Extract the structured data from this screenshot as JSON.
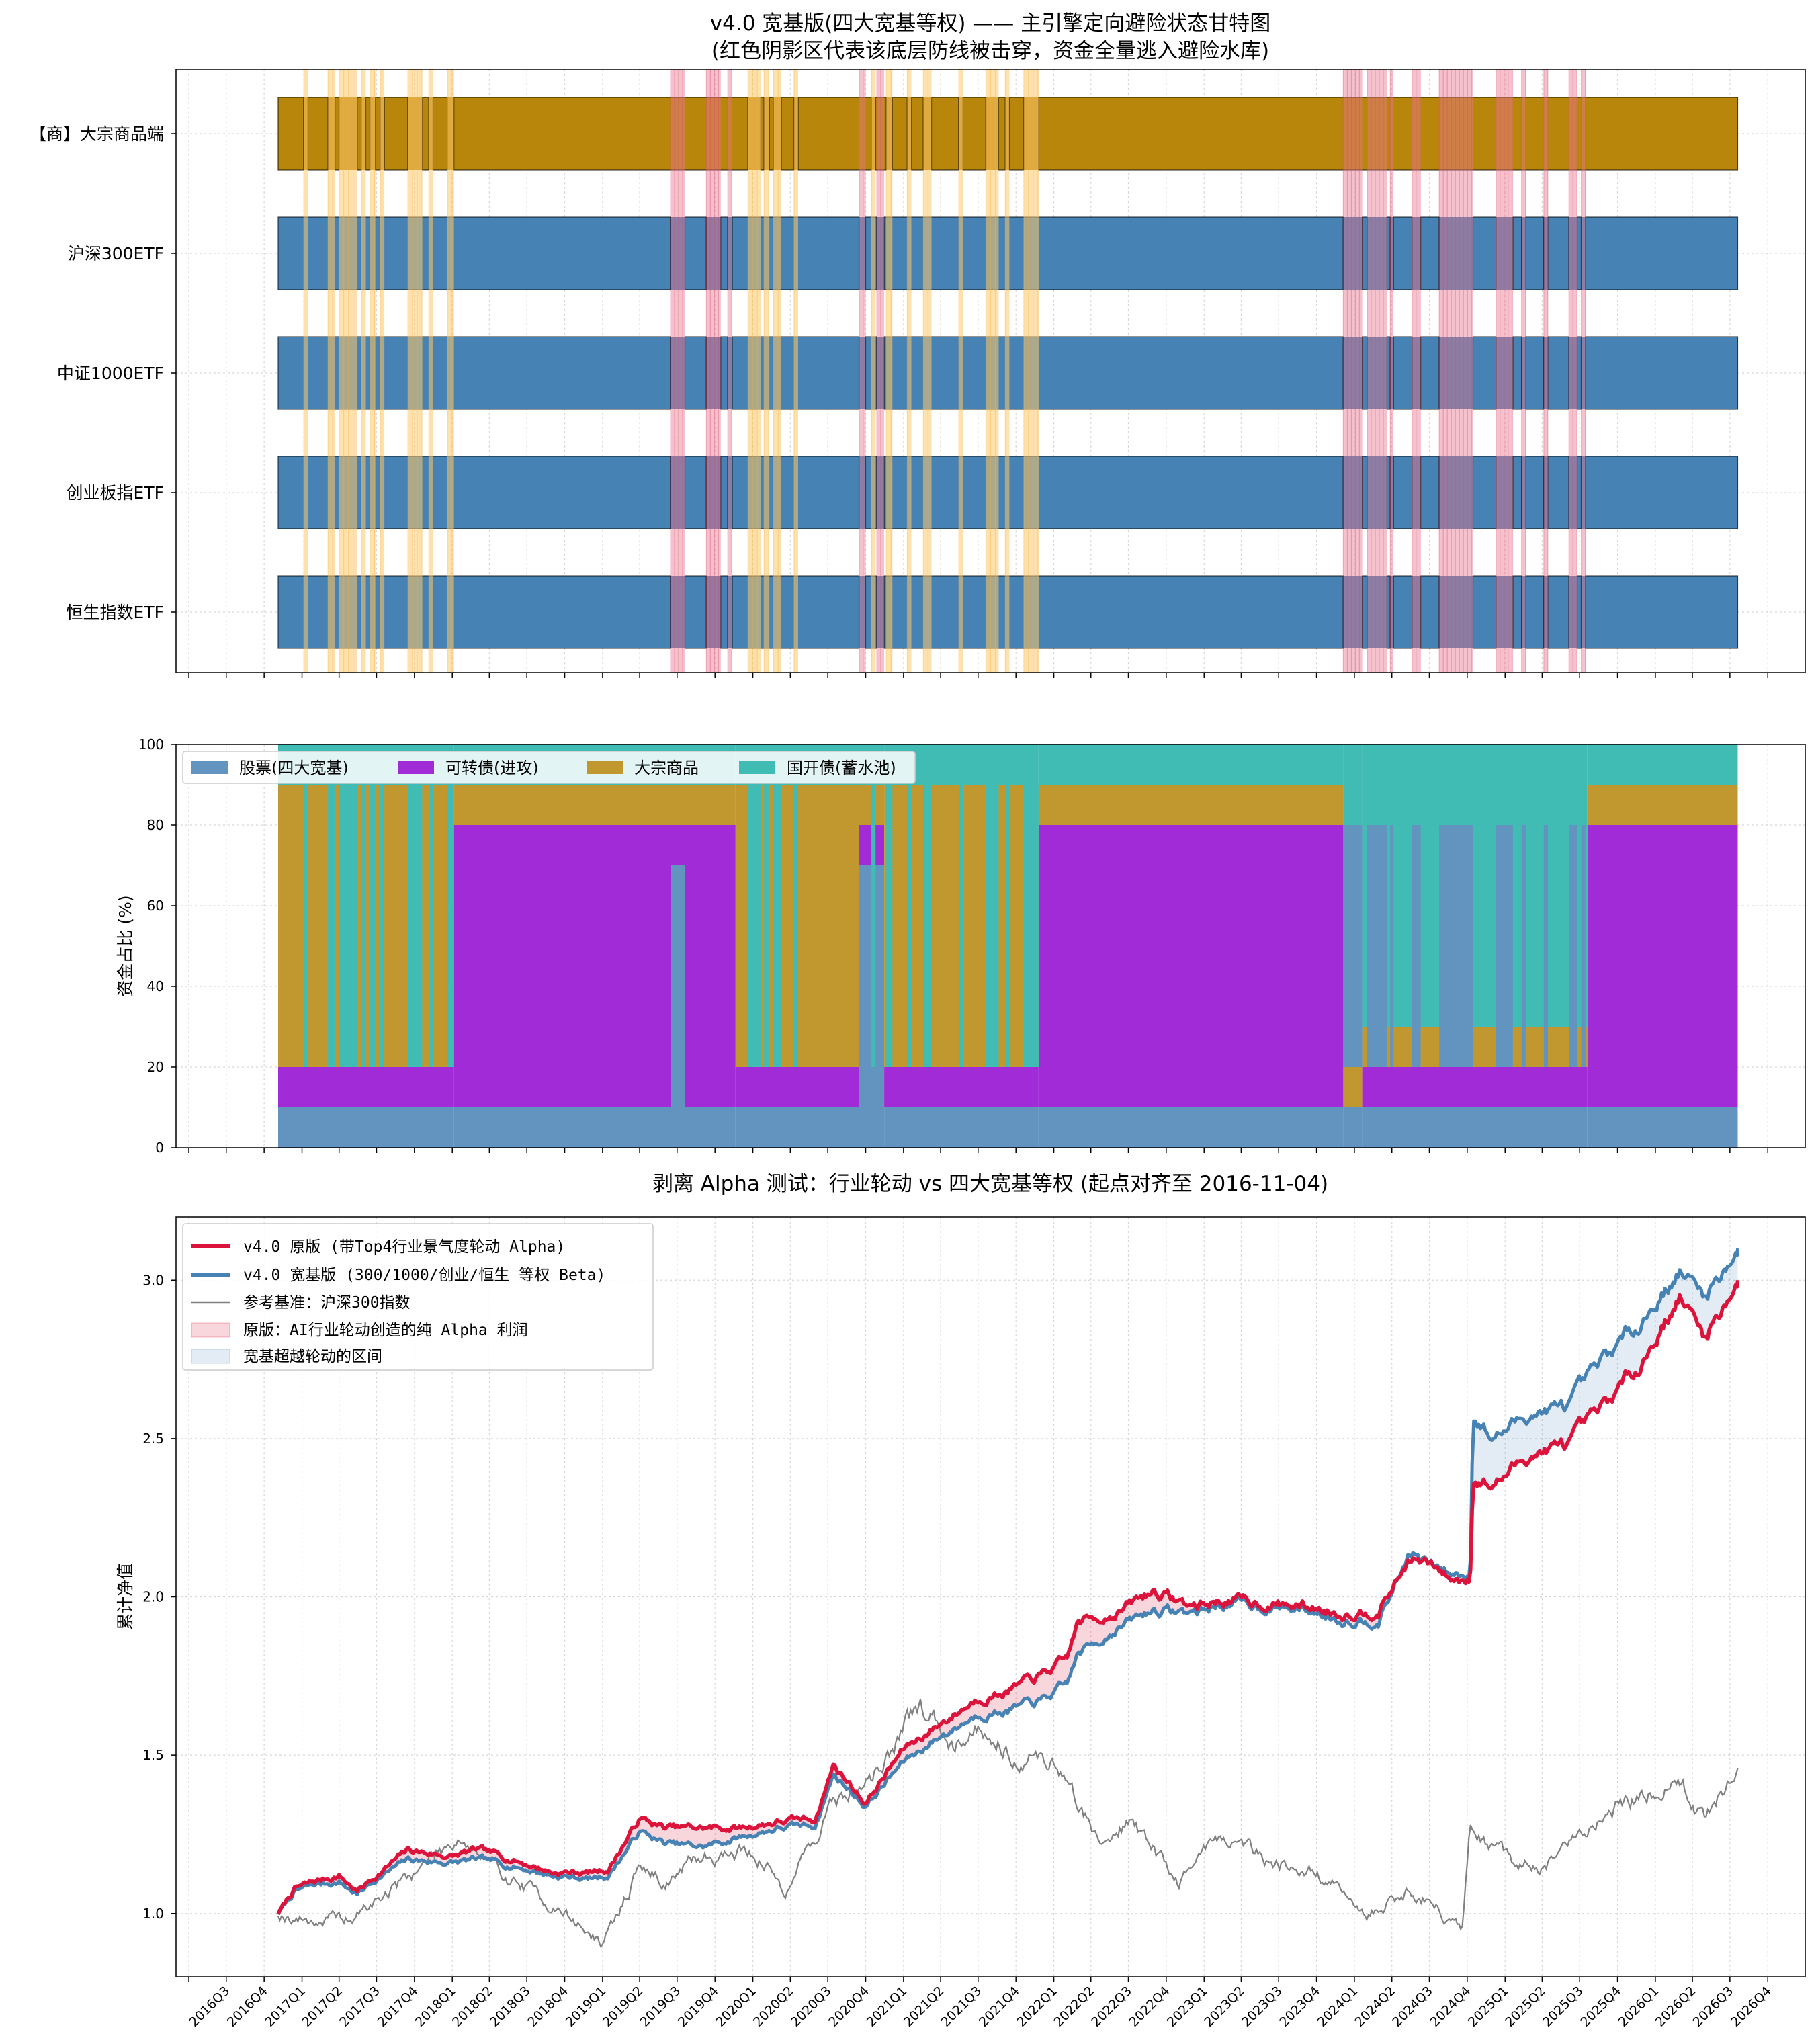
{
  "colors": {
    "stock": "#4682b4",
    "stock_area": "#6393bf",
    "cb": "#a22bd8",
    "commodity": "#b8860b",
    "commodity_area": "#c0982f",
    "bond": "#40bcb4",
    "red_line": "#dc143c",
    "blue_line": "#4682b4",
    "bench": "#808080",
    "shade_red": "#e8758f",
    "shade_orange": "#ffc96b"
  },
  "chart_data": [
    {
      "type": "gantt",
      "title": "v4.0 宽基版(四大宽基等权) —— 主引擎定向避险状态甘特图",
      "subtitle": "(红色阴影区代表该底层防线被击穿，资金全量逃入避险水库)",
      "rows": [
        "【商】大宗商品端",
        "沪深300ETF",
        "中证1000ETF",
        "创业板指ETF",
        "恒生指数ETF"
      ],
      "x_range": [
        "2016-03-01",
        "2026-12-31"
      ],
      "bar_span": [
        "2016-11-04",
        "2026-07-20"
      ],
      "orange_shades": [
        [
          "2017-01-05",
          "2017-01-15"
        ],
        [
          "2017-03-05",
          "2017-03-22"
        ],
        [
          "2017-04-01",
          "2017-05-15"
        ],
        [
          "2017-05-25",
          "2017-06-05"
        ],
        [
          "2017-06-15",
          "2017-06-28"
        ],
        [
          "2017-07-10",
          "2017-07-20"
        ],
        [
          "2017-09-15",
          "2017-10-20"
        ],
        [
          "2017-11-05",
          "2017-11-15"
        ],
        [
          "2017-12-20",
          "2018-01-05"
        ],
        [
          "2019-12-20",
          "2020-01-20"
        ],
        [
          "2020-01-28",
          "2020-02-10"
        ],
        [
          "2020-02-20",
          "2020-03-10"
        ],
        [
          "2020-04-10",
          "2020-04-20"
        ],
        [
          "2020-10-15",
          "2020-10-25"
        ],
        [
          "2020-11-20",
          "2020-12-05"
        ],
        [
          "2021-01-10",
          "2021-01-20"
        ],
        [
          "2021-02-18",
          "2021-03-10"
        ],
        [
          "2021-05-15",
          "2021-05-25"
        ],
        [
          "2021-07-20",
          "2021-08-20"
        ],
        [
          "2021-09-05",
          "2021-09-15"
        ],
        [
          "2021-10-20",
          "2021-11-25"
        ]
      ],
      "red_shades": [
        [
          "2019-06-15",
          "2019-07-20"
        ],
        [
          "2019-09-10",
          "2019-10-15"
        ],
        [
          "2019-11-01",
          "2019-11-12"
        ],
        [
          "2020-09-15",
          "2020-10-01"
        ],
        [
          "2020-10-28",
          "2020-11-15"
        ],
        [
          "2023-12-05",
          "2024-01-20"
        ],
        [
          "2024-02-01",
          "2024-03-20"
        ],
        [
          "2024-03-28",
          "2024-04-05"
        ],
        [
          "2024-05-20",
          "2024-06-10"
        ],
        [
          "2024-07-25",
          "2024-10-15"
        ],
        [
          "2024-12-10",
          "2025-01-20"
        ],
        [
          "2025-02-10",
          "2025-02-20"
        ],
        [
          "2025-04-05",
          "2025-04-15"
        ],
        [
          "2025-06-05",
          "2025-06-25"
        ],
        [
          "2025-07-05",
          "2025-07-15"
        ]
      ]
    },
    {
      "type": "area",
      "ylabel": "资金占比 (%)",
      "ylim": [
        0,
        100
      ],
      "yticks": [
        0,
        20,
        40,
        60,
        80,
        100
      ],
      "series": [
        {
          "name": "股票(四大宽基)",
          "key": "stock"
        },
        {
          "name": "可转债(进攻)",
          "key": "cb"
        },
        {
          "name": "大宗商品",
          "key": "commodity"
        },
        {
          "name": "国开债(蓄水池)",
          "key": "bond"
        }
      ],
      "regimes": [
        {
          "label": "A",
          "stock": 10,
          "cb": 10,
          "commodity": 70,
          "bond": 10
        },
        {
          "label": "B",
          "stock": 10,
          "cb": 10,
          "commodity": 0,
          "bond": 80
        },
        {
          "label": "C",
          "stock": 10,
          "cb": 70,
          "commodity": 10,
          "bond": 10
        },
        {
          "label": "D",
          "stock": 70,
          "cb": 10,
          "commodity": 10,
          "bond": 10
        },
        {
          "label": "E",
          "stock": 10,
          "cb": 0,
          "commodity": 10,
          "bond": 80
        },
        {
          "label": "F",
          "stock": 10,
          "cb": 10,
          "commodity": 10,
          "bond": 70
        }
      ],
      "segments": [
        [
          "2016-11-04",
          "2018-01-05",
          "A"
        ],
        [
          "2018-01-05",
          "2019-06-15",
          "C"
        ],
        [
          "2019-06-15",
          "2019-07-20",
          "D"
        ],
        [
          "2019-07-20",
          "2019-11-20",
          "C"
        ],
        [
          "2019-11-20",
          "2020-09-15",
          "A"
        ],
        [
          "2020-09-15",
          "2020-11-15",
          "D"
        ],
        [
          "2020-11-15",
          "2021-11-25",
          "A"
        ],
        [
          "2021-11-25",
          "2023-12-05",
          "C"
        ],
        [
          "2023-12-05",
          "2024-01-20",
          "E"
        ],
        [
          "2024-01-20",
          "2025-07-20",
          "F"
        ],
        [
          "2025-07-20",
          "2026-07-20",
          "C"
        ]
      ]
    },
    {
      "type": "line",
      "title": "剥离 Alpha 测试：行业轮动 vs 四大宽基等权 (起点对齐至 2016-11-04)",
      "ylabel": "累计净值",
      "ylim": [
        0.8,
        3.2
      ],
      "yticks": [
        1.0,
        1.5,
        2.0,
        2.5,
        3.0
      ],
      "xticks": [
        "2016Q3",
        "2016Q4",
        "2017Q1",
        "2017Q2",
        "2017Q3",
        "2017Q4",
        "2018Q1",
        "2018Q2",
        "2018Q3",
        "2018Q4",
        "2019Q1",
        "2019Q2",
        "2019Q3",
        "2019Q4",
        "2020Q1",
        "2020Q2",
        "2020Q3",
        "2020Q4",
        "2021Q1",
        "2021Q2",
        "2021Q3",
        "2021Q4",
        "2022Q1",
        "2022Q2",
        "2022Q3",
        "2022Q4",
        "2023Q1",
        "2023Q2",
        "2023Q3",
        "2023Q4",
        "2024Q1",
        "2024Q2",
        "2024Q3",
        "2024Q4",
        "2025Q1",
        "2025Q2",
        "2025Q3",
        "2025Q4",
        "2026Q1",
        "2026Q2",
        "2026Q3",
        "2026Q4"
      ],
      "legend": [
        "v4.0 原版 (带Top4行业景气度轮动 Alpha)",
        "v4.0 宽基版 (300/1000/创业/恒生 等权 Beta)",
        "参考基准：沪深300指数",
        "原版：AI行业轮动创造的纯 Alpha 利润",
        "宽基超越轮动的区间"
      ],
      "series": [
        {
          "name": "v4.0 原版 (带Top4行业景气度轮动 Alpha)",
          "points": [
            [
              "2016-11-04",
              1.0
            ],
            [
              "2016-12-15",
              1.08
            ],
            [
              "2017-02-01",
              1.1
            ],
            [
              "2017-04-01",
              1.12
            ],
            [
              "2017-05-15",
              1.07
            ],
            [
              "2017-07-01",
              1.12
            ],
            [
              "2017-09-15",
              1.2
            ],
            [
              "2018-01-01",
              1.18
            ],
            [
              "2018-03-01",
              1.2
            ],
            [
              "2018-06-01",
              1.17
            ],
            [
              "2018-09-01",
              1.13
            ],
            [
              "2018-12-01",
              1.13
            ],
            [
              "2019-01-15",
              1.14
            ],
            [
              "2019-04-01",
              1.3
            ],
            [
              "2019-06-01",
              1.27
            ],
            [
              "2019-09-01",
              1.27
            ],
            [
              "2019-12-01",
              1.27
            ],
            [
              "2020-03-01",
              1.29
            ],
            [
              "2020-06-01",
              1.3
            ],
            [
              "2020-07-15",
              1.47
            ],
            [
              "2020-10-01",
              1.35
            ],
            [
              "2021-01-01",
              1.52
            ],
            [
              "2021-04-01",
              1.6
            ],
            [
              "2021-07-01",
              1.68
            ],
            [
              "2021-09-01",
              1.7
            ],
            [
              "2021-12-01",
              1.75
            ],
            [
              "2022-02-01",
              1.8
            ],
            [
              "2022-03-01",
              1.92
            ],
            [
              "2022-06-01",
              1.95
            ],
            [
              "2022-09-01",
              2.02
            ],
            [
              "2022-12-01",
              1.97
            ],
            [
              "2023-03-01",
              1.99
            ],
            [
              "2023-06-01",
              1.98
            ],
            [
              "2023-09-01",
              1.97
            ],
            [
              "2023-12-01",
              1.95
            ],
            [
              "2024-03-01",
              1.96
            ],
            [
              "2024-05-15",
              2.12
            ],
            [
              "2024-07-01",
              2.1
            ],
            [
              "2024-09-01",
              2.05
            ],
            [
              "2024-10-08",
              2.06
            ],
            [
              "2024-10-15",
              2.38
            ],
            [
              "2024-12-01",
              2.35
            ],
            [
              "2025-03-01",
              2.45
            ],
            [
              "2025-06-01",
              2.48
            ],
            [
              "2025-09-01",
              2.6
            ],
            [
              "2025-12-01",
              2.75
            ],
            [
              "2026-03-01",
              2.95
            ],
            [
              "2026-05-01",
              2.82
            ],
            [
              "2026-07-20",
              3.0
            ]
          ]
        },
        {
          "name": "v4.0 宽基版 (300/1000/创业/恒生 等权 Beta)",
          "points": [
            [
              "2016-11-04",
              1.0
            ],
            [
              "2016-12-15",
              1.07
            ],
            [
              "2017-02-01",
              1.09
            ],
            [
              "2017-04-01",
              1.1
            ],
            [
              "2017-05-15",
              1.06
            ],
            [
              "2017-07-01",
              1.11
            ],
            [
              "2017-09-15",
              1.17
            ],
            [
              "2018-01-01",
              1.16
            ],
            [
              "2018-03-01",
              1.17
            ],
            [
              "2018-06-01",
              1.15
            ],
            [
              "2018-09-01",
              1.12
            ],
            [
              "2018-12-01",
              1.11
            ],
            [
              "2019-01-15",
              1.12
            ],
            [
              "2019-04-01",
              1.26
            ],
            [
              "2019-06-01",
              1.22
            ],
            [
              "2019-09-01",
              1.21
            ],
            [
              "2019-12-01",
              1.24
            ],
            [
              "2020-03-01",
              1.27
            ],
            [
              "2020-06-01",
              1.28
            ],
            [
              "2020-07-15",
              1.44
            ],
            [
              "2020-10-01",
              1.34
            ],
            [
              "2021-01-01",
              1.48
            ],
            [
              "2021-04-01",
              1.56
            ],
            [
              "2021-07-01",
              1.63
            ],
            [
              "2021-09-01",
              1.64
            ],
            [
              "2021-12-01",
              1.67
            ],
            [
              "2022-02-01",
              1.72
            ],
            [
              "2022-03-01",
              1.82
            ],
            [
              "2022-06-01",
              1.9
            ],
            [
              "2022-09-01",
              1.96
            ],
            [
              "2022-12-01",
              1.95
            ],
            [
              "2023-03-01",
              1.98
            ],
            [
              "2023-06-01",
              1.97
            ],
            [
              "2023-09-01",
              1.96
            ],
            [
              "2023-12-01",
              1.93
            ],
            [
              "2024-03-01",
              1.93
            ],
            [
              "2024-05-15",
              2.14
            ],
            [
              "2024-07-01",
              2.1
            ],
            [
              "2024-09-01",
              2.07
            ],
            [
              "2024-10-08",
              2.07
            ],
            [
              "2024-10-15",
              2.58
            ],
            [
              "2024-12-01",
              2.5
            ],
            [
              "2025-03-01",
              2.58
            ],
            [
              "2025-06-01",
              2.6
            ],
            [
              "2025-09-01",
              2.75
            ],
            [
              "2025-12-01",
              2.88
            ],
            [
              "2026-03-01",
              3.03
            ],
            [
              "2026-05-01",
              2.95
            ],
            [
              "2026-07-20",
              3.1
            ]
          ]
        },
        {
          "name": "参考基准：沪深300指数",
          "points": [
            [
              "2016-11-04",
              1.0
            ],
            [
              "2017-01-15",
              0.98
            ],
            [
              "2017-05-01",
              0.98
            ],
            [
              "2017-09-01",
              1.1
            ],
            [
              "2018-01-20",
              1.25
            ],
            [
              "2018-04-01",
              1.15
            ],
            [
              "2018-07-01",
              1.08
            ],
            [
              "2018-10-01",
              1.0
            ],
            [
              "2019-01-04",
              0.9
            ],
            [
              "2019-04-01",
              1.15
            ],
            [
              "2019-06-01",
              1.1
            ],
            [
              "2019-09-01",
              1.18
            ],
            [
              "2019-12-31",
              1.2
            ],
            [
              "2020-03-20",
              1.08
            ],
            [
              "2020-07-15",
              1.35
            ],
            [
              "2020-10-01",
              1.4
            ],
            [
              "2021-02-10",
              1.65
            ],
            [
              "2021-05-01",
              1.55
            ],
            [
              "2021-07-01",
              1.6
            ],
            [
              "2021-10-01",
              1.5
            ],
            [
              "2021-12-31",
              1.48
            ],
            [
              "2022-04-27",
              1.22
            ],
            [
              "2022-07-01",
              1.3
            ],
            [
              "2022-10-31",
              1.1
            ],
            [
              "2023-01-31",
              1.25
            ],
            [
              "2023-06-01",
              1.18
            ],
            [
              "2023-10-01",
              1.12
            ],
            [
              "2024-02-05",
              1.0
            ],
            [
              "2024-05-15",
              1.08
            ],
            [
              "2024-09-20",
              0.95
            ],
            [
              "2024-10-08",
              1.25
            ],
            [
              "2025-01-15",
              1.16
            ],
            [
              "2025-04-08",
              1.14
            ],
            [
              "2025-09-01",
              1.32
            ],
            [
              "2025-12-01",
              1.38
            ],
            [
              "2026-03-01",
              1.42
            ],
            [
              "2026-05-01",
              1.3
            ],
            [
              "2026-07-20",
              1.46
            ]
          ]
        }
      ]
    }
  ]
}
